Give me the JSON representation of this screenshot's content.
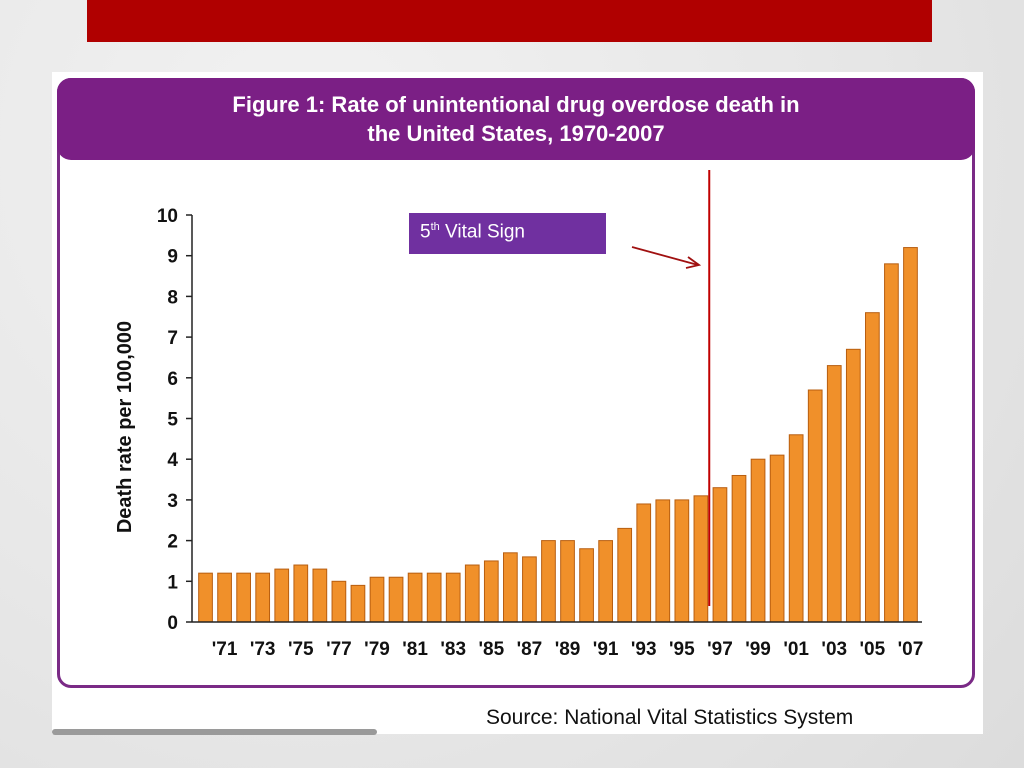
{
  "slide": {
    "band_color": "#b00000"
  },
  "figure": {
    "title_line1": "Figure 1: Rate of unintentional drug overdose death in",
    "title_line2": "the United States, 1970-2007",
    "accent_color": "#7b1f85"
  },
  "callout": {
    "number": "5",
    "suffix": "th",
    "text": " Vital Sign"
  },
  "source": "Source: National Vital Statistics System",
  "chart_data": {
    "type": "bar",
    "title": "Figure 1: Rate of unintentional drug overdose death in the United States, 1970-2007",
    "xlabel": "",
    "ylabel": "Death rate per 100,000",
    "ylim": [
      0,
      10
    ],
    "yticks": [
      "0",
      "1",
      "2",
      "3",
      "4",
      "5",
      "6",
      "7",
      "8",
      "9",
      "10"
    ],
    "bar_color": "#f0902a",
    "categories": [
      "1970",
      "1971",
      "1972",
      "1973",
      "1974",
      "1975",
      "1976",
      "1977",
      "1978",
      "1979",
      "1980",
      "1981",
      "1982",
      "1983",
      "1984",
      "1985",
      "1986",
      "1987",
      "1988",
      "1989",
      "1990",
      "1991",
      "1992",
      "1993",
      "1994",
      "1995",
      "1996",
      "1997",
      "1998",
      "1999",
      "2000",
      "2001",
      "2002",
      "2003",
      "2004",
      "2005",
      "2006",
      "2007"
    ],
    "values": [
      1.2,
      1.2,
      1.2,
      1.2,
      1.3,
      1.4,
      1.3,
      1.0,
      0.9,
      1.1,
      1.1,
      1.2,
      1.2,
      1.2,
      1.4,
      1.5,
      1.7,
      1.6,
      2.0,
      2.0,
      1.8,
      2.0,
      2.3,
      2.9,
      3.0,
      3.0,
      3.1,
      3.3,
      3.6,
      4.0,
      4.1,
      4.6,
      5.7,
      6.3,
      6.7,
      7.6,
      8.8,
      9.2
    ],
    "tick_labels": [
      {
        "index": 1,
        "label": "'71"
      },
      {
        "index": 3,
        "label": "'73"
      },
      {
        "index": 5,
        "label": "'75"
      },
      {
        "index": 7,
        "label": "'77"
      },
      {
        "index": 9,
        "label": "'79"
      },
      {
        "index": 11,
        "label": "'81"
      },
      {
        "index": 13,
        "label": "'83"
      },
      {
        "index": 15,
        "label": "'85"
      },
      {
        "index": 17,
        "label": "'87"
      },
      {
        "index": 19,
        "label": "'89"
      },
      {
        "index": 21,
        "label": "'91"
      },
      {
        "index": 23,
        "label": "'93"
      },
      {
        "index": 25,
        "label": "'95"
      },
      {
        "index": 27,
        "label": "'97"
      },
      {
        "index": 29,
        "label": "'99"
      },
      {
        "index": 31,
        "label": "'01"
      },
      {
        "index": 33,
        "label": "'03"
      },
      {
        "index": 35,
        "label": "'05"
      },
      {
        "index": 37,
        "label": "'07"
      }
    ],
    "annotation": {
      "label": "5th Vital Sign",
      "marker_year": "1996",
      "line_color": "#c00000"
    }
  }
}
